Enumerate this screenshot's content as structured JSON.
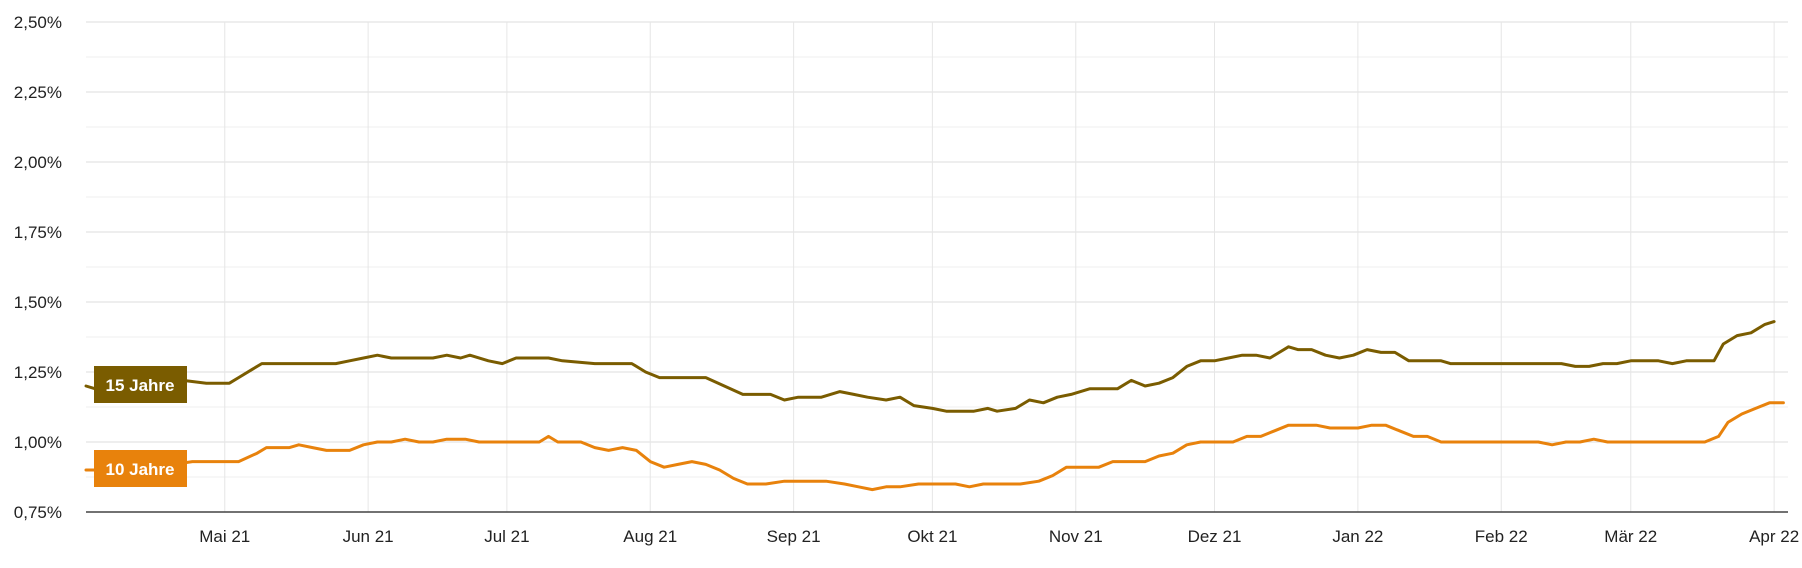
{
  "chart_data": {
    "type": "line",
    "title": "",
    "xlabel": "",
    "ylabel": "",
    "x_range": [
      "2021-04-01",
      "2022-04-04"
    ],
    "ylim": [
      0.75,
      2.5
    ],
    "y_ticks": [
      {
        "value": 0.75,
        "label": "0,75%"
      },
      {
        "value": 1.0,
        "label": "1,00%"
      },
      {
        "value": 1.25,
        "label": "1,25%"
      },
      {
        "value": 1.5,
        "label": "1,50%"
      },
      {
        "value": 1.75,
        "label": "1,75%"
      },
      {
        "value": 2.0,
        "label": "2,00%"
      },
      {
        "value": 2.25,
        "label": "2,25%"
      },
      {
        "value": 2.5,
        "label": "2,50%"
      }
    ],
    "x_ticks": [
      {
        "date": "2021-05-01",
        "label": "Mai 21"
      },
      {
        "date": "2021-06-01",
        "label": "Jun 21"
      },
      {
        "date": "2021-07-01",
        "label": "Jul 21"
      },
      {
        "date": "2021-08-01",
        "label": "Aug 21"
      },
      {
        "date": "2021-09-01",
        "label": "Sep 21"
      },
      {
        "date": "2021-10-01",
        "label": "Okt 21"
      },
      {
        "date": "2021-11-01",
        "label": "Nov 21"
      },
      {
        "date": "2021-12-01",
        "label": "Dez 21"
      },
      {
        "date": "2022-01-01",
        "label": "Jan 22"
      },
      {
        "date": "2022-02-01",
        "label": "Feb 22"
      },
      {
        "date": "2022-03-01",
        "label": "Mär 22"
      },
      {
        "date": "2022-04-01",
        "label": "Apr 22"
      }
    ],
    "grid": true,
    "legend": "series labels at left edge",
    "series": [
      {
        "name": "15 Jahre",
        "color": "#7a5c00",
        "points": [
          [
            "2021-04-01",
            1.2
          ],
          [
            "2021-04-03",
            1.19
          ],
          [
            "2021-04-06",
            1.21
          ],
          [
            "2021-04-09",
            1.22
          ],
          [
            "2021-04-14",
            1.22
          ],
          [
            "2021-04-19",
            1.24
          ],
          [
            "2021-04-22",
            1.22
          ],
          [
            "2021-04-27",
            1.21
          ],
          [
            "2021-05-02",
            1.21
          ],
          [
            "2021-05-04",
            1.23
          ],
          [
            "2021-05-07",
            1.26
          ],
          [
            "2021-05-09",
            1.28
          ],
          [
            "2021-05-15",
            1.28
          ],
          [
            "2021-05-25",
            1.28
          ],
          [
            "2021-05-28",
            1.29
          ],
          [
            "2021-05-31",
            1.3
          ],
          [
            "2021-06-03",
            1.31
          ],
          [
            "2021-06-06",
            1.3
          ],
          [
            "2021-06-15",
            1.3
          ],
          [
            "2021-06-18",
            1.31
          ],
          [
            "2021-06-21",
            1.3
          ],
          [
            "2021-06-23",
            1.31
          ],
          [
            "2021-06-27",
            1.29
          ],
          [
            "2021-06-30",
            1.28
          ],
          [
            "2021-07-03",
            1.3
          ],
          [
            "2021-07-10",
            1.3
          ],
          [
            "2021-07-13",
            1.29
          ],
          [
            "2021-07-20",
            1.28
          ],
          [
            "2021-07-28",
            1.28
          ],
          [
            "2021-07-31",
            1.25
          ],
          [
            "2021-08-03",
            1.23
          ],
          [
            "2021-08-13",
            1.23
          ],
          [
            "2021-08-17",
            1.2
          ],
          [
            "2021-08-21",
            1.17
          ],
          [
            "2021-08-27",
            1.17
          ],
          [
            "2021-08-30",
            1.15
          ],
          [
            "2021-09-02",
            1.16
          ],
          [
            "2021-09-07",
            1.16
          ],
          [
            "2021-09-11",
            1.18
          ],
          [
            "2021-09-14",
            1.17
          ],
          [
            "2021-09-17",
            1.16
          ],
          [
            "2021-09-21",
            1.15
          ],
          [
            "2021-09-24",
            1.16
          ],
          [
            "2021-09-27",
            1.13
          ],
          [
            "2021-10-01",
            1.12
          ],
          [
            "2021-10-04",
            1.11
          ],
          [
            "2021-10-10",
            1.11
          ],
          [
            "2021-10-13",
            1.12
          ],
          [
            "2021-10-15",
            1.11
          ],
          [
            "2021-10-19",
            1.12
          ],
          [
            "2021-10-22",
            1.15
          ],
          [
            "2021-10-25",
            1.14
          ],
          [
            "2021-10-28",
            1.16
          ],
          [
            "2021-10-31",
            1.17
          ],
          [
            "2021-11-04",
            1.19
          ],
          [
            "2021-11-07",
            1.19
          ],
          [
            "2021-11-10",
            1.19
          ],
          [
            "2021-11-13",
            1.22
          ],
          [
            "2021-11-16",
            1.2
          ],
          [
            "2021-11-19",
            1.21
          ],
          [
            "2021-11-22",
            1.23
          ],
          [
            "2021-11-25",
            1.27
          ],
          [
            "2021-11-28",
            1.29
          ],
          [
            "2021-12-01",
            1.29
          ],
          [
            "2021-12-04",
            1.3
          ],
          [
            "2021-12-07",
            1.31
          ],
          [
            "2021-12-10",
            1.31
          ],
          [
            "2021-12-13",
            1.3
          ],
          [
            "2021-12-15",
            1.32
          ],
          [
            "2021-12-17",
            1.34
          ],
          [
            "2021-12-19",
            1.33
          ],
          [
            "2021-12-22",
            1.33
          ],
          [
            "2021-12-25",
            1.31
          ],
          [
            "2021-12-28",
            1.3
          ],
          [
            "2021-12-31",
            1.31
          ],
          [
            "2022-01-03",
            1.33
          ],
          [
            "2022-01-06",
            1.32
          ],
          [
            "2022-01-09",
            1.32
          ],
          [
            "2022-01-12",
            1.29
          ],
          [
            "2022-01-15",
            1.29
          ],
          [
            "2022-01-19",
            1.29
          ],
          [
            "2022-01-21",
            1.28
          ],
          [
            "2022-01-24",
            1.28
          ],
          [
            "2022-01-27",
            1.28
          ],
          [
            "2022-01-30",
            1.28
          ],
          [
            "2022-02-02",
            1.28
          ],
          [
            "2022-02-05",
            1.28
          ],
          [
            "2022-02-08",
            1.28
          ],
          [
            "2022-02-11",
            1.28
          ],
          [
            "2022-02-14",
            1.28
          ],
          [
            "2022-02-17",
            1.27
          ],
          [
            "2022-02-20",
            1.27
          ],
          [
            "2022-02-23",
            1.28
          ],
          [
            "2022-02-26",
            1.28
          ],
          [
            "2022-03-01",
            1.29
          ],
          [
            "2022-03-04",
            1.29
          ],
          [
            "2022-03-07",
            1.29
          ],
          [
            "2022-03-10",
            1.28
          ],
          [
            "2022-03-13",
            1.29
          ],
          [
            "2022-03-16",
            1.29
          ],
          [
            "2022-03-19",
            1.29
          ],
          [
            "2022-03-21",
            1.35
          ],
          [
            "2022-03-24",
            1.38
          ],
          [
            "2022-03-27",
            1.39
          ],
          [
            "2022-03-30",
            1.42
          ],
          [
            "2022-04-01",
            1.43
          ]
        ]
      },
      {
        "name": "10 Jahre",
        "color": "#e8820c",
        "points": [
          [
            "2021-04-01",
            0.9
          ],
          [
            "2021-04-08",
            0.9
          ],
          [
            "2021-04-16",
            0.91
          ],
          [
            "2021-04-24",
            0.93
          ],
          [
            "2021-05-04",
            0.93
          ],
          [
            "2021-05-08",
            0.96
          ],
          [
            "2021-05-10",
            0.98
          ],
          [
            "2021-05-15",
            0.98
          ],
          [
            "2021-05-17",
            0.99
          ],
          [
            "2021-05-20",
            0.98
          ],
          [
            "2021-05-23",
            0.97
          ],
          [
            "2021-05-28",
            0.97
          ],
          [
            "2021-05-31",
            0.99
          ],
          [
            "2021-06-03",
            1.0
          ],
          [
            "2021-06-06",
            1.0
          ],
          [
            "2021-06-09",
            1.01
          ],
          [
            "2021-06-12",
            1.0
          ],
          [
            "2021-06-15",
            1.0
          ],
          [
            "2021-06-18",
            1.01
          ],
          [
            "2021-06-22",
            1.01
          ],
          [
            "2021-06-25",
            1.0
          ],
          [
            "2021-06-28",
            1.0
          ],
          [
            "2021-07-04",
            1.0
          ],
          [
            "2021-07-08",
            1.0
          ],
          [
            "2021-07-10",
            1.02
          ],
          [
            "2021-07-12",
            1.0
          ],
          [
            "2021-07-17",
            1.0
          ],
          [
            "2021-07-20",
            0.98
          ],
          [
            "2021-07-23",
            0.97
          ],
          [
            "2021-07-26",
            0.98
          ],
          [
            "2021-07-29",
            0.97
          ],
          [
            "2021-08-01",
            0.93
          ],
          [
            "2021-08-04",
            0.91
          ],
          [
            "2021-08-07",
            0.92
          ],
          [
            "2021-08-10",
            0.93
          ],
          [
            "2021-08-13",
            0.92
          ],
          [
            "2021-08-16",
            0.9
          ],
          [
            "2021-08-19",
            0.87
          ],
          [
            "2021-08-22",
            0.85
          ],
          [
            "2021-08-26",
            0.85
          ],
          [
            "2021-08-30",
            0.86
          ],
          [
            "2021-09-04",
            0.86
          ],
          [
            "2021-09-08",
            0.86
          ],
          [
            "2021-09-12",
            0.85
          ],
          [
            "2021-09-15",
            0.84
          ],
          [
            "2021-09-18",
            0.83
          ],
          [
            "2021-09-21",
            0.84
          ],
          [
            "2021-09-24",
            0.84
          ],
          [
            "2021-09-28",
            0.85
          ],
          [
            "2021-10-02",
            0.85
          ],
          [
            "2021-10-06",
            0.85
          ],
          [
            "2021-10-09",
            0.84
          ],
          [
            "2021-10-12",
            0.85
          ],
          [
            "2021-10-16",
            0.85
          ],
          [
            "2021-10-20",
            0.85
          ],
          [
            "2021-10-24",
            0.86
          ],
          [
            "2021-10-27",
            0.88
          ],
          [
            "2021-10-30",
            0.91
          ],
          [
            "2021-11-02",
            0.91
          ],
          [
            "2021-11-06",
            0.91
          ],
          [
            "2021-11-09",
            0.93
          ],
          [
            "2021-11-13",
            0.93
          ],
          [
            "2021-11-16",
            0.93
          ],
          [
            "2021-11-19",
            0.95
          ],
          [
            "2021-11-22",
            0.96
          ],
          [
            "2021-11-25",
            0.99
          ],
          [
            "2021-11-28",
            1.0
          ],
          [
            "2021-12-02",
            1.0
          ],
          [
            "2021-12-05",
            1.0
          ],
          [
            "2021-12-08",
            1.02
          ],
          [
            "2021-12-11",
            1.02
          ],
          [
            "2021-12-14",
            1.04
          ],
          [
            "2021-12-17",
            1.06
          ],
          [
            "2021-12-20",
            1.06
          ],
          [
            "2021-12-23",
            1.06
          ],
          [
            "2021-12-26",
            1.05
          ],
          [
            "2021-12-29",
            1.05
          ],
          [
            "2022-01-01",
            1.05
          ],
          [
            "2022-01-04",
            1.06
          ],
          [
            "2022-01-07",
            1.06
          ],
          [
            "2022-01-10",
            1.04
          ],
          [
            "2022-01-13",
            1.02
          ],
          [
            "2022-01-16",
            1.02
          ],
          [
            "2022-01-19",
            1.0
          ],
          [
            "2022-01-22",
            1.0
          ],
          [
            "2022-01-25",
            1.0
          ],
          [
            "2022-01-28",
            1.0
          ],
          [
            "2022-01-31",
            1.0
          ],
          [
            "2022-02-03",
            1.0
          ],
          [
            "2022-02-06",
            1.0
          ],
          [
            "2022-02-09",
            1.0
          ],
          [
            "2022-02-12",
            0.99
          ],
          [
            "2022-02-15",
            1.0
          ],
          [
            "2022-02-18",
            1.0
          ],
          [
            "2022-02-21",
            1.01
          ],
          [
            "2022-02-24",
            1.0
          ],
          [
            "2022-02-27",
            1.0
          ],
          [
            "2022-03-02",
            1.0
          ],
          [
            "2022-03-05",
            1.0
          ],
          [
            "2022-03-08",
            1.0
          ],
          [
            "2022-03-11",
            1.0
          ],
          [
            "2022-03-14",
            1.0
          ],
          [
            "2022-03-17",
            1.0
          ],
          [
            "2022-03-20",
            1.02
          ],
          [
            "2022-03-22",
            1.07
          ],
          [
            "2022-03-25",
            1.1
          ],
          [
            "2022-03-28",
            1.12
          ],
          [
            "2022-03-31",
            1.14
          ],
          [
            "2022-04-03",
            1.14
          ]
        ]
      }
    ]
  }
}
